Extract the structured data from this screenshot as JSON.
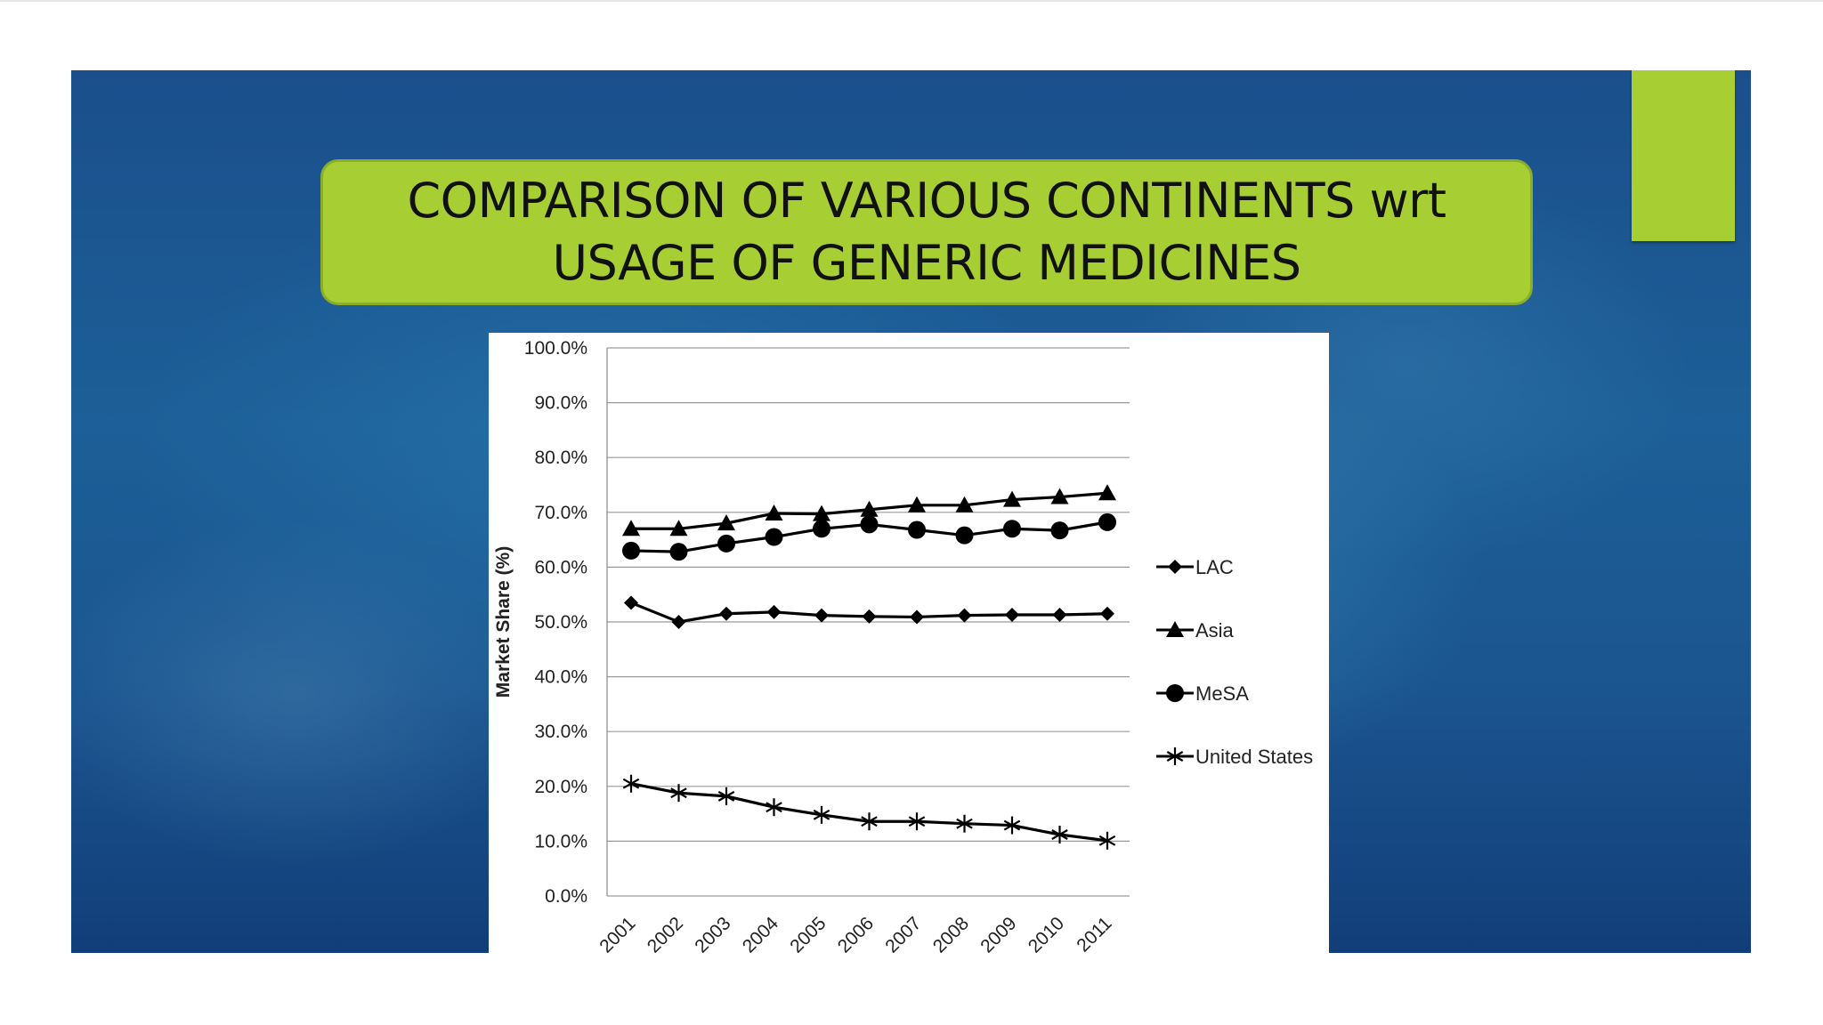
{
  "slide": {
    "title": "COMPARISON OF VARIOUS CONTINENTS wrt\nUSAGE OF GENERIC MEDICINES"
  },
  "colors": {
    "title_bg": "#a7cf34",
    "slide_bg": "#1b5590",
    "series_line": "#000000"
  },
  "chart_data": {
    "type": "line",
    "title": "",
    "ylabel": "Market Share (%)",
    "xlabel": "",
    "ylim": [
      0,
      100
    ],
    "yticks": [
      "0.0%",
      "10.0%",
      "20.0%",
      "30.0%",
      "40.0%",
      "50.0%",
      "60.0%",
      "70.0%",
      "80.0%",
      "90.0%",
      "100.0%"
    ],
    "x": [
      "2001",
      "2002",
      "2003",
      "2004",
      "2005",
      "2006",
      "2007",
      "2008",
      "2009",
      "2010",
      "2011"
    ],
    "grid": "horizontal",
    "legend": "right",
    "series": [
      {
        "name": "LAC",
        "marker": "diamond",
        "values": [
          53.5,
          50.0,
          51.5,
          51.8,
          51.2,
          51.0,
          50.9,
          51.2,
          51.3,
          51.3,
          51.5
        ]
      },
      {
        "name": "Asia",
        "marker": "triangle",
        "values": [
          67.0,
          67.0,
          68.0,
          69.8,
          69.7,
          70.5,
          71.3,
          71.3,
          72.3,
          72.8,
          73.5
        ]
      },
      {
        "name": "MeSA",
        "marker": "circle",
        "values": [
          63.0,
          62.8,
          64.3,
          65.5,
          67.0,
          67.8,
          66.8,
          65.8,
          67.0,
          66.7,
          68.2
        ]
      },
      {
        "name": "United States",
        "marker": "asterisk",
        "values": [
          20.5,
          18.8,
          18.2,
          16.2,
          14.8,
          13.6,
          13.6,
          13.2,
          12.9,
          11.2,
          10.1
        ]
      }
    ]
  }
}
